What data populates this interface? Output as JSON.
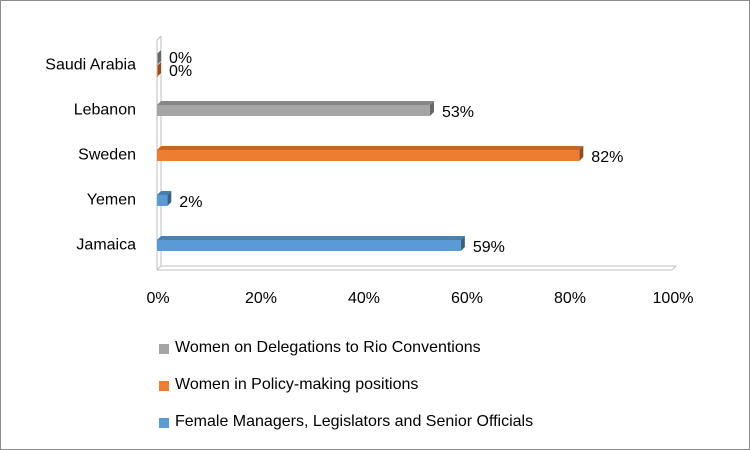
{
  "chart_data": {
    "type": "bar",
    "orientation": "horizontal",
    "categories": [
      "Saudi Arabia",
      "Lebanon",
      "Sweden",
      "Yemen",
      "Jamaica"
    ],
    "series": [
      {
        "name": "Women on Delegations to Rio Conventions",
        "color": "#a5a5a5",
        "values": [
          0,
          53,
          null,
          null,
          null
        ],
        "labels": [
          "0%",
          "53%",
          "",
          "",
          ""
        ]
      },
      {
        "name": "Women in Policy-making positions",
        "color": "#ed7d31",
        "values": [
          0,
          null,
          82,
          null,
          null
        ],
        "labels": [
          "0%",
          "",
          "82%",
          "",
          ""
        ]
      },
      {
        "name": "Female Managers, Legislators and Senior Officials",
        "color": "#5b9bd5",
        "values": [
          null,
          null,
          null,
          2,
          59
        ],
        "labels": [
          "",
          "",
          "",
          "2%",
          "59%"
        ]
      }
    ],
    "xlim": [
      0,
      100
    ],
    "xticks": [
      "0%",
      "20%",
      "40%",
      "60%",
      "80%",
      "100%"
    ],
    "grid": false,
    "legend_position": "bottom",
    "style": "3d-bar"
  }
}
